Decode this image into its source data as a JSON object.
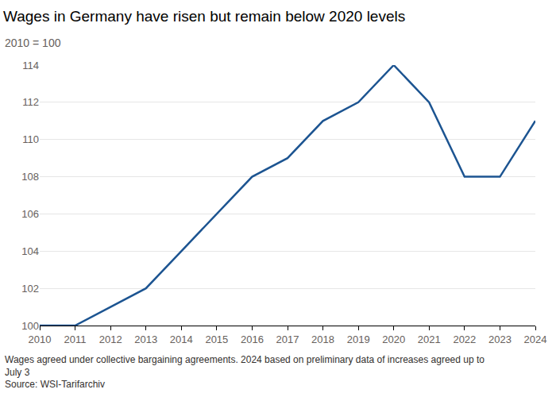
{
  "chart_data": {
    "type": "line",
    "title": "Wages in Germany have risen but remain below 2020 levels",
    "subtitle": "2010 = 100",
    "x": [
      2010,
      2011,
      2012,
      2013,
      2014,
      2015,
      2016,
      2017,
      2018,
      2019,
      2020,
      2021,
      2022,
      2023,
      2024
    ],
    "values": [
      100,
      100,
      101,
      102,
      104,
      106,
      108,
      109,
      111,
      112,
      114,
      112,
      108,
      108,
      111
    ],
    "color": "#1c5491",
    "xlim": [
      2010,
      2024
    ],
    "xticks": [
      2010,
      2011,
      2012,
      2013,
      2014,
      2015,
      2016,
      2017,
      2018,
      2019,
      2020,
      2021,
      2022,
      2023,
      2024
    ],
    "ylim": [
      100,
      114
    ],
    "yticks": [
      100,
      102,
      104,
      106,
      108,
      110,
      112,
      114
    ],
    "grid": true,
    "note": [
      "Wages agreed under collective bargaining agreements. 2024 based on preliminary data of increases agreed up to",
      "July 3"
    ],
    "source": "Source: WSI-Tarifarchiv"
  }
}
